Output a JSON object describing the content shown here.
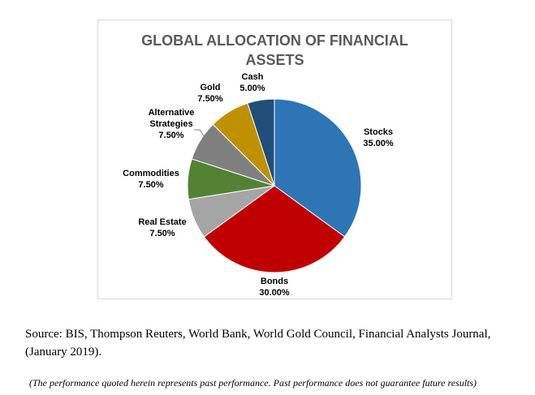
{
  "chart_data": {
    "type": "pie",
    "title_line1": "GLOBAL ALLOCATION OF FINANCIAL",
    "title_line2": "ASSETS",
    "slices": [
      {
        "label": "Stocks",
        "value": 35.0,
        "value_label": "35.00%",
        "color": "#2e75b6"
      },
      {
        "label": "Bonds",
        "value": 30.0,
        "value_label": "30.00%",
        "color": "#c00000"
      },
      {
        "label": "Real Estate",
        "value": 7.5,
        "value_label": "7.50%",
        "color": "#a5a5a5"
      },
      {
        "label": "Commodities",
        "value": 7.5,
        "value_label": "7.50%",
        "color": "#548235"
      },
      {
        "label": "Alternative Strategies",
        "value": 7.5,
        "value_label": "7.50%",
        "color": "#7f7f7f"
      },
      {
        "label": "Gold",
        "value": 7.5,
        "value_label": "7.50%",
        "color": "#bf9000"
      },
      {
        "label": "Cash",
        "value": 5.0,
        "value_label": "5.00%",
        "color": "#1f4e79"
      }
    ]
  },
  "source_text": "Source: BIS, Thompson Reuters, World Bank, World Gold Council, Financial Analysts Journal, (January 2019).",
  "disclaimer_text": "(The performance quoted herein represents past performance. Past performance does not guarantee future results)"
}
